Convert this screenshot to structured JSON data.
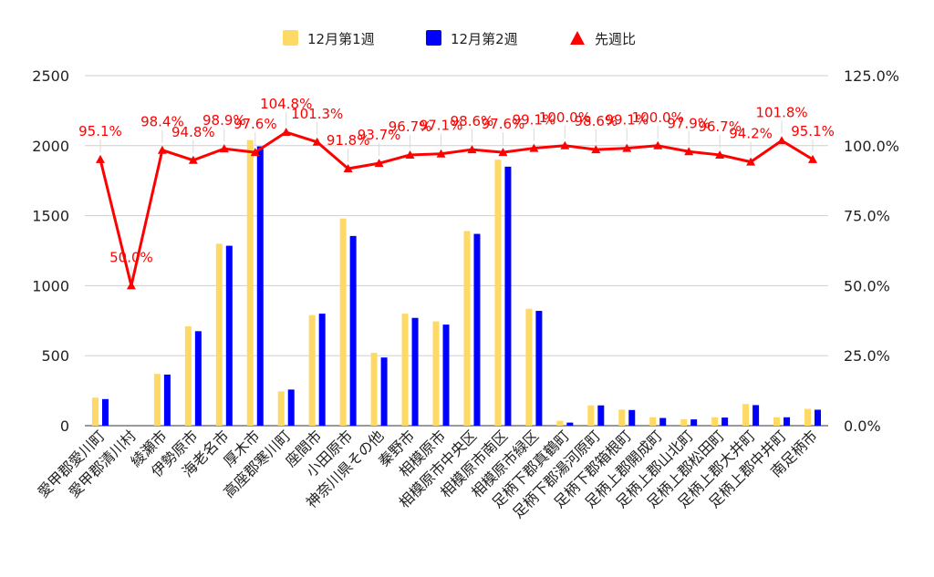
{
  "chart_data": {
    "type": "bar",
    "categories": [
      "愛甲郡愛川町",
      "愛甲郡清川村",
      "綾瀬市",
      "伊勢原市",
      "海老名市",
      "厚木市",
      "高座郡寒川町",
      "座間市",
      "小田原市",
      "神奈川県その他",
      "秦野市",
      "相模原市",
      "相模原市中央区",
      "相模原市南区",
      "相模原市緑区",
      "足柄下郡真鶴町",
      "足柄下郡湯河原町",
      "足柄下郡箱根町",
      "足柄上郡開成町",
      "足柄上郡山北町",
      "足柄上郡松田町",
      "足柄上郡大井町",
      "足柄上郡中井町",
      "南足柄市"
    ],
    "series": [
      {
        "name": "12月第1週",
        "type": "bar",
        "axis": "left",
        "color": "#ffd966",
        "values": [
          200,
          0,
          370,
          710,
          1300,
          2040,
          245,
          790,
          1480,
          520,
          800,
          745,
          1390,
          1900,
          835,
          35,
          145,
          115,
          60,
          45,
          60,
          155,
          60,
          120
        ]
      },
      {
        "name": "12月第2週",
        "type": "bar",
        "axis": "left",
        "color": "#0000ff",
        "values": [
          190,
          0,
          365,
          675,
          1285,
          1995,
          258,
          800,
          1355,
          487,
          770,
          722,
          1370,
          1850,
          820,
          22,
          145,
          112,
          55,
          45,
          58,
          147,
          60,
          114
        ]
      },
      {
        "name": "先週比",
        "type": "line",
        "axis": "right",
        "color": "#ff0000",
        "values": [
          95.1,
          50.0,
          98.4,
          94.8,
          98.9,
          97.6,
          104.8,
          101.3,
          91.8,
          93.7,
          96.7,
          97.1,
          98.6,
          97.6,
          99.1,
          100.0,
          98.6,
          99.1,
          100.0,
          97.9,
          96.7,
          94.2,
          101.8,
          95.1
        ],
        "labels": [
          "95.1%",
          "50.0%",
          "98.4%",
          "94.8%",
          "98.9%",
          "97.6%",
          "104.8%",
          "101.3%",
          "91.8%",
          "93.7%",
          "96.7%",
          "97.1%",
          "98.6%",
          "97.6%",
          "99.1%",
          "100.0%",
          "98.6%",
          "99.1%",
          "100.0%",
          "97.9%",
          "96.7%",
          "94.2%",
          "101.8%",
          "95.1%"
        ]
      }
    ],
    "ylim": [
      0,
      2500
    ],
    "yticks": [
      "0",
      "500",
      "1000",
      "1500",
      "2000",
      "2500"
    ],
    "y2lim": [
      0,
      125
    ],
    "y2ticks": [
      "0.0%",
      "25.0%",
      "50.0%",
      "75.0%",
      "100.0%",
      "125.0%"
    ],
    "title": "",
    "xlabel": "",
    "ylabel": "",
    "legend": "top-center",
    "grid": true
  }
}
